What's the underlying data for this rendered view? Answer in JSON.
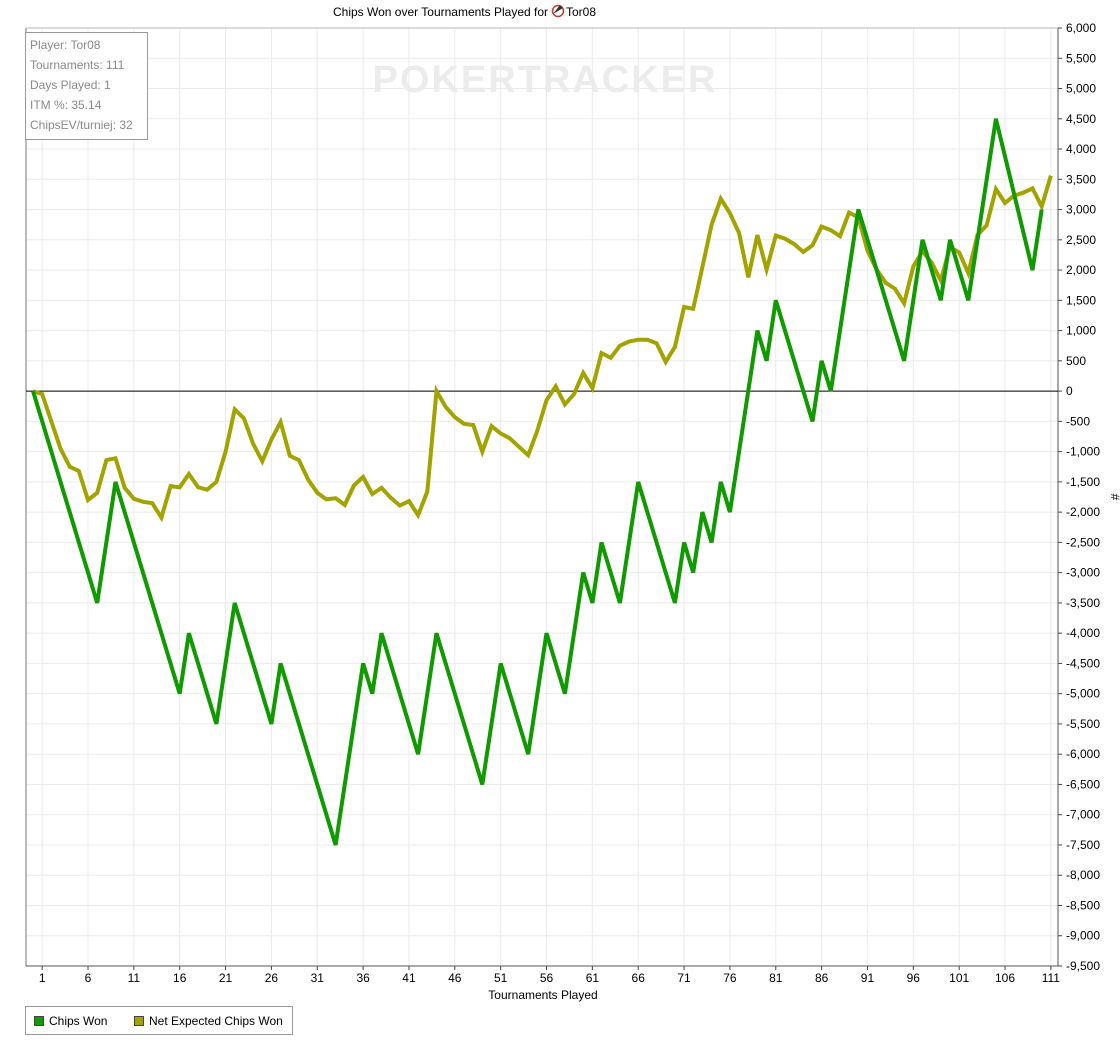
{
  "chart_data": {
    "type": "line",
    "title": "Chips Won over Tournaments Played for",
    "player_name": "Tor08",
    "player_icon": "poker-chip-icon",
    "xlabel": "Tournaments Played",
    "ylabel": "#",
    "xlim": [
      0,
      112
    ],
    "ylim": [
      -9500,
      6000
    ],
    "x_ticks": [
      1,
      6,
      11,
      16,
      21,
      26,
      31,
      36,
      41,
      46,
      51,
      56,
      61,
      66,
      71,
      76,
      81,
      86,
      91,
      96,
      101,
      106,
      111
    ],
    "y_tick_step": 500,
    "grid": true,
    "zero_line": true,
    "y_axis_side": "right",
    "watermark": "POKERTRACKER",
    "series": [
      {
        "name": "Chips Won",
        "color": "#0f9a00",
        "points": [
          [
            0,
            0
          ],
          [
            7,
            -3500
          ],
          [
            9,
            -1500
          ],
          [
            16,
            -5000
          ],
          [
            17,
            -4000
          ],
          [
            20,
            -5500
          ],
          [
            22,
            -3500
          ],
          [
            26,
            -5500
          ],
          [
            27,
            -4500
          ],
          [
            33,
            -7500
          ],
          [
            36,
            -4500
          ],
          [
            37,
            -5000
          ],
          [
            38,
            -4000
          ],
          [
            42,
            -6000
          ],
          [
            44,
            -4000
          ],
          [
            49,
            -6500
          ],
          [
            51,
            -4500
          ],
          [
            54,
            -6000
          ],
          [
            56,
            -4000
          ],
          [
            58,
            -5000
          ],
          [
            60,
            -3000
          ],
          [
            61,
            -3500
          ],
          [
            62,
            -2500
          ],
          [
            64,
            -3500
          ],
          [
            66,
            -1500
          ],
          [
            70,
            -3500
          ],
          [
            71,
            -2500
          ],
          [
            72,
            -3000
          ],
          [
            73,
            -2000
          ],
          [
            74,
            -2500
          ],
          [
            75,
            -1500
          ],
          [
            76,
            -2000
          ],
          [
            79,
            1000
          ],
          [
            80,
            500
          ],
          [
            81,
            1500
          ],
          [
            85,
            -500
          ],
          [
            86,
            500
          ],
          [
            87,
            0
          ],
          [
            90,
            3000
          ],
          [
            95,
            500
          ],
          [
            97,
            2500
          ],
          [
            99,
            1500
          ],
          [
            100,
            2500
          ],
          [
            102,
            1500
          ],
          [
            105,
            4500
          ],
          [
            109,
            2000
          ],
          [
            110,
            3000
          ]
        ]
      },
      {
        "name": "Net Expected Chips Won",
        "color": "#a3a300",
        "points": [
          [
            0,
            0
          ],
          [
            1,
            -50
          ],
          [
            2,
            -500
          ],
          [
            3,
            -950
          ],
          [
            4,
            -1250
          ],
          [
            5,
            -1320
          ],
          [
            6,
            -1800
          ],
          [
            7,
            -1680
          ],
          [
            8,
            -1140
          ],
          [
            9,
            -1110
          ],
          [
            10,
            -1600
          ],
          [
            11,
            -1780
          ],
          [
            12,
            -1830
          ],
          [
            13,
            -1850
          ],
          [
            14,
            -2090
          ],
          [
            15,
            -1570
          ],
          [
            16,
            -1590
          ],
          [
            17,
            -1370
          ],
          [
            18,
            -1590
          ],
          [
            19,
            -1630
          ],
          [
            20,
            -1500
          ],
          [
            21,
            -1000
          ],
          [
            22,
            -300
          ],
          [
            23,
            -450
          ],
          [
            24,
            -870
          ],
          [
            25,
            -1160
          ],
          [
            26,
            -800
          ],
          [
            27,
            -510
          ],
          [
            28,
            -1070
          ],
          [
            29,
            -1140
          ],
          [
            30,
            -1460
          ],
          [
            31,
            -1680
          ],
          [
            32,
            -1790
          ],
          [
            33,
            -1770
          ],
          [
            34,
            -1880
          ],
          [
            35,
            -1560
          ],
          [
            36,
            -1420
          ],
          [
            37,
            -1700
          ],
          [
            38,
            -1600
          ],
          [
            39,
            -1760
          ],
          [
            40,
            -1890
          ],
          [
            41,
            -1820
          ],
          [
            42,
            -2050
          ],
          [
            43,
            -1660
          ],
          [
            44,
            0
          ],
          [
            45,
            -260
          ],
          [
            46,
            -430
          ],
          [
            47,
            -540
          ],
          [
            48,
            -560
          ],
          [
            49,
            -1000
          ],
          [
            50,
            -580
          ],
          [
            51,
            -700
          ],
          [
            52,
            -780
          ],
          [
            53,
            -920
          ],
          [
            54,
            -1060
          ],
          [
            55,
            -650
          ],
          [
            56,
            -150
          ],
          [
            57,
            80
          ],
          [
            58,
            -220
          ],
          [
            59,
            -50
          ],
          [
            60,
            300
          ],
          [
            61,
            50
          ],
          [
            62,
            630
          ],
          [
            63,
            550
          ],
          [
            64,
            750
          ],
          [
            65,
            820
          ],
          [
            66,
            850
          ],
          [
            67,
            850
          ],
          [
            68,
            790
          ],
          [
            69,
            480
          ],
          [
            70,
            730
          ],
          [
            71,
            1390
          ],
          [
            72,
            1360
          ],
          [
            73,
            2050
          ],
          [
            74,
            2750
          ],
          [
            75,
            3180
          ],
          [
            76,
            2940
          ],
          [
            77,
            2610
          ],
          [
            78,
            1880
          ],
          [
            79,
            2580
          ],
          [
            80,
            2010
          ],
          [
            81,
            2570
          ],
          [
            82,
            2520
          ],
          [
            83,
            2430
          ],
          [
            84,
            2300
          ],
          [
            85,
            2410
          ],
          [
            86,
            2720
          ],
          [
            87,
            2660
          ],
          [
            88,
            2560
          ],
          [
            89,
            2950
          ],
          [
            90,
            2870
          ],
          [
            91,
            2320
          ],
          [
            92,
            2010
          ],
          [
            93,
            1790
          ],
          [
            94,
            1690
          ],
          [
            95,
            1450
          ],
          [
            96,
            2060
          ],
          [
            97,
            2310
          ],
          [
            98,
            2120
          ],
          [
            99,
            1830
          ],
          [
            100,
            2380
          ],
          [
            101,
            2290
          ],
          [
            102,
            1950
          ],
          [
            103,
            2580
          ],
          [
            104,
            2740
          ],
          [
            105,
            3340
          ],
          [
            106,
            3110
          ],
          [
            107,
            3230
          ],
          [
            108,
            3280
          ],
          [
            109,
            3350
          ],
          [
            110,
            3050
          ],
          [
            111,
            3560
          ]
        ]
      }
    ]
  },
  "stats": {
    "player": "Player: Tor08",
    "tournaments": "Tournaments: 111",
    "days": "Days Played: 1",
    "itm": "ITM %: 35.14",
    "chipsev": "ChipsEV/turniej: 32"
  },
  "legend": {
    "chips_won": "Chips Won",
    "net_expected": "Net Expected Chips Won"
  }
}
